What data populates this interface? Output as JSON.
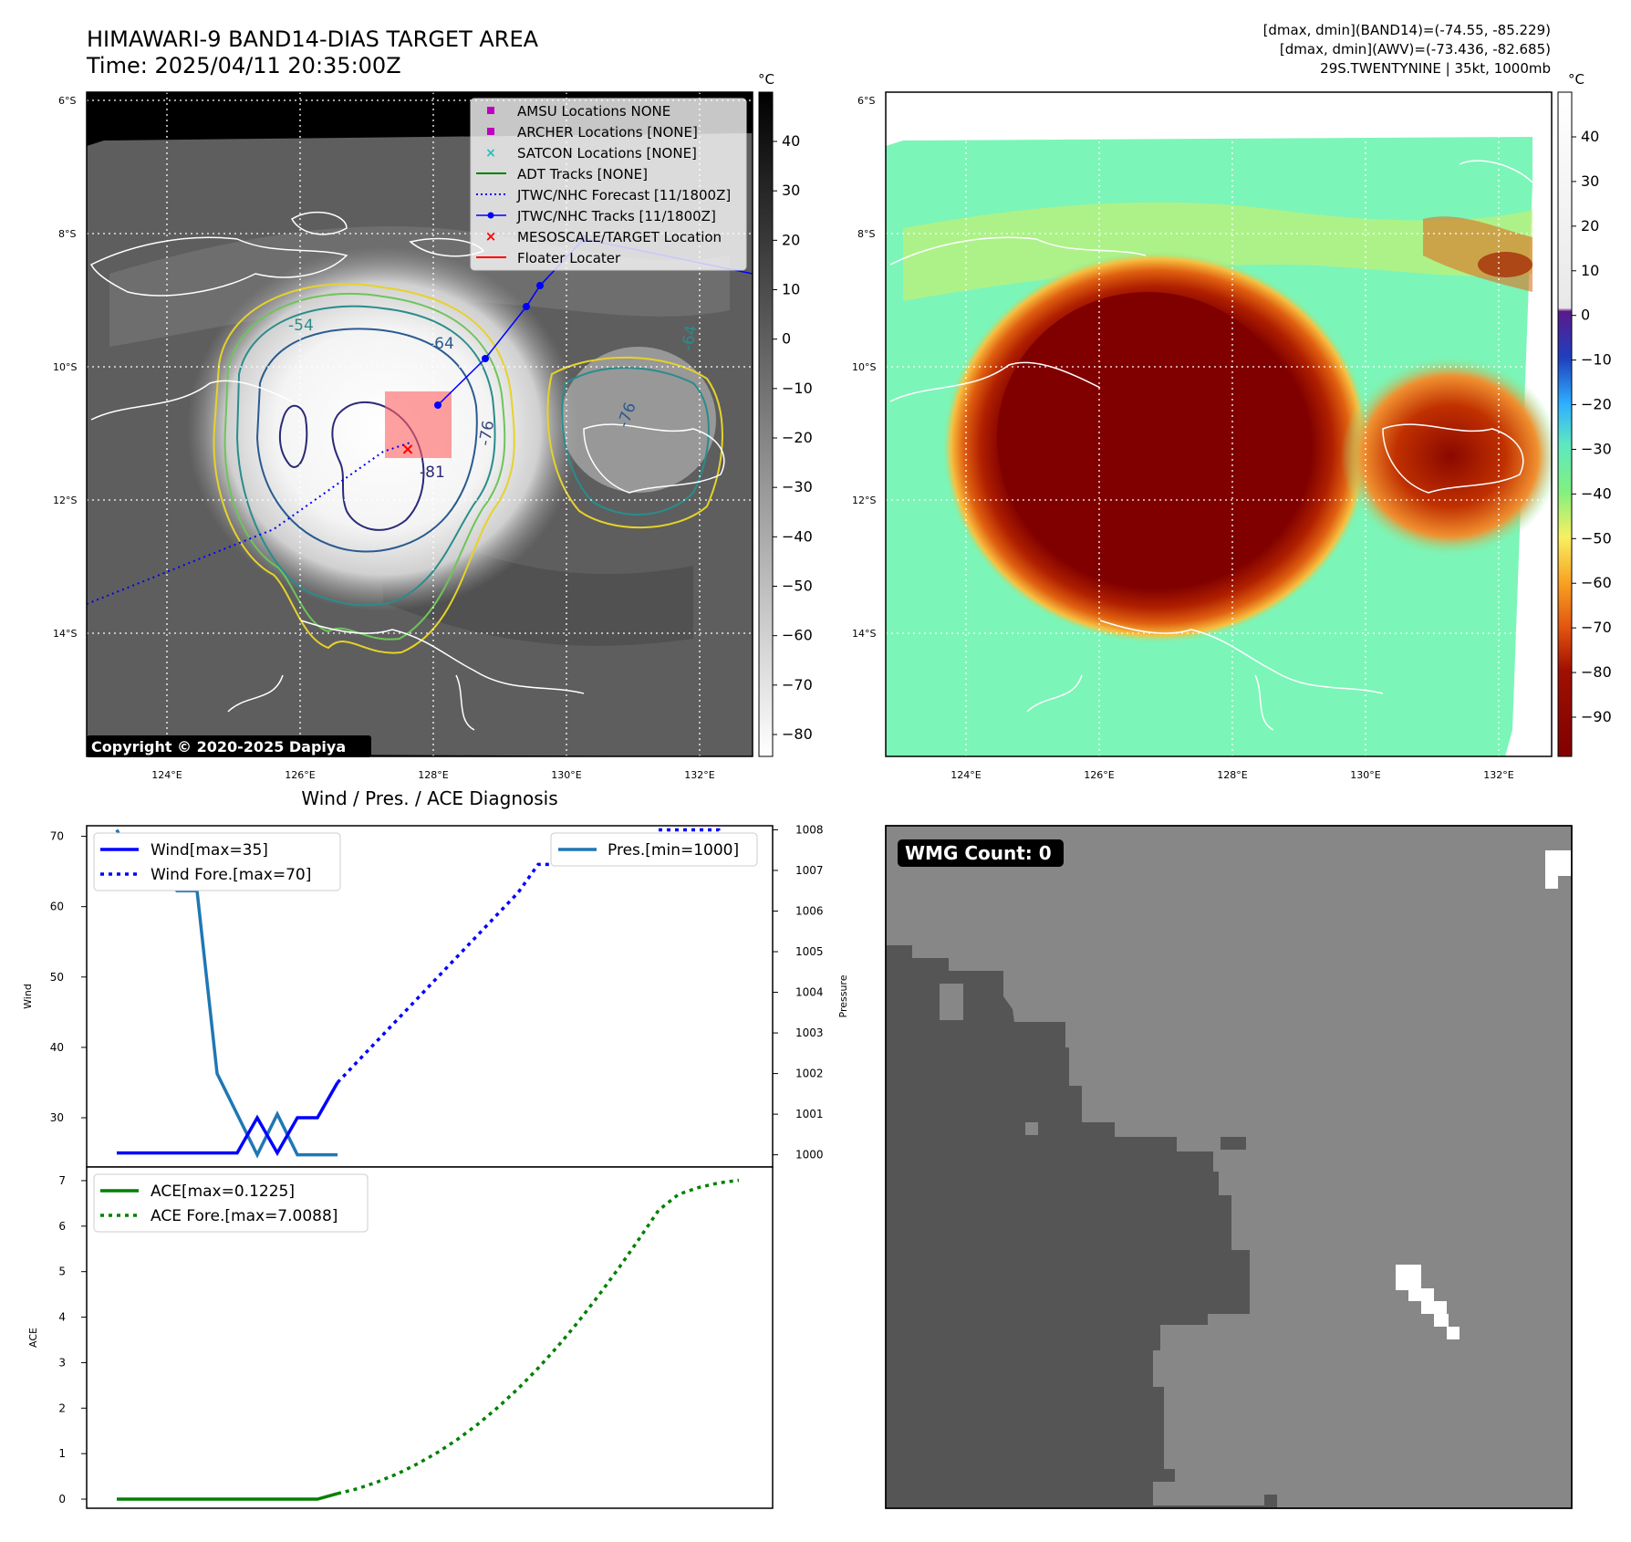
{
  "header": {
    "title": "HIMAWARI-9 BAND14-DIAS TARGET AREA",
    "time": "Time: 2025/04/11 20:35:00Z",
    "stats_band14": "[dmax, dmin](BAND14)=(-74.55, -85.229)",
    "stats_awv": "[dmax, dmin](AWV)=(-73.436, -82.685)",
    "storm_info": "29S.TWENTYNINE | 35kt, 1000mb"
  },
  "map": {
    "lat_labels": [
      "6°S",
      "8°S",
      "10°S",
      "12°S",
      "14°S"
    ],
    "lon_labels": [
      "124°E",
      "126°E",
      "128°E",
      "130°E",
      "132°E"
    ],
    "copyright": "Copyright © 2020-2025 Dapiya",
    "contour_labels": [
      "-54",
      "-64",
      "-76",
      "-81",
      "-76",
      "-64"
    ],
    "legend": [
      {
        "label": "AMSU Locations NONE",
        "marker": "square",
        "color": "#c000c0"
      },
      {
        "label": "ARCHER Locations [NONE]",
        "marker": "square",
        "color": "#c000c0"
      },
      {
        "label": "SATCON Locations [NONE]",
        "marker": "x",
        "color": "#1fbfbf"
      },
      {
        "label": "ADT Tracks [NONE]",
        "marker": "line",
        "color": "#008000"
      },
      {
        "label": "JTWC/NHC Forecast [11/1800Z]",
        "marker": "dotted",
        "color": "#0000ff"
      },
      {
        "label": "JTWC/NHC Tracks [11/1800Z]",
        "marker": "line-dot",
        "color": "#0000ff"
      },
      {
        "label": "MESOSCALE/TARGET Location",
        "marker": "x",
        "color": "#ff0000"
      },
      {
        "label": "Floater Locater",
        "marker": "line",
        "color": "#ff0000"
      }
    ]
  },
  "colorbar_gray": {
    "unit": "°C",
    "ticks": [
      "40",
      "30",
      "20",
      "10",
      "0",
      "−10",
      "−20",
      "−30",
      "−40",
      "−50",
      "−60",
      "−70",
      "−80"
    ]
  },
  "colorbar_color": {
    "unit": "°C",
    "ticks": [
      "40",
      "30",
      "20",
      "10",
      "0",
      "−10",
      "−20",
      "−30",
      "−40",
      "−50",
      "−60",
      "−70",
      "−80",
      "−90"
    ]
  },
  "diagnosis": {
    "title": "Wind / Pres. / ACE Diagnosis",
    "wind_ylabel": "Wind",
    "pres_ylabel": "Pressure",
    "ace_ylabel": "ACE",
    "wind_ticks": [
      "70",
      "60",
      "50",
      "40",
      "30"
    ],
    "pres_ticks": [
      "1008",
      "1007",
      "1006",
      "1005",
      "1004",
      "1003",
      "1002",
      "1001",
      "1000"
    ],
    "ace_ticks": [
      "7",
      "6",
      "5",
      "4",
      "3",
      "2",
      "1",
      "0"
    ],
    "legend_wind": "Wind[max=35]",
    "legend_wind_fore": "Wind Fore.[max=70]",
    "legend_pres": "Pres.[min=1000]",
    "legend_ace": "ACE[max=0.1225]",
    "legend_ace_fore": "ACE Fore.[max=7.0088]"
  },
  "wmg": {
    "label": "WMG Count: 0"
  },
  "chart_data": [
    {
      "type": "line",
      "title": "Wind / Pres. / ACE Diagnosis",
      "ylabel": "Wind",
      "ylim": [
        23,
        71.5
      ],
      "series": [
        {
          "name": "Wind[max=35]",
          "style": "solid",
          "color": "#0000ff",
          "x": [
            0,
            1,
            2,
            3,
            4,
            5,
            6,
            7,
            8,
            9,
            10,
            11
          ],
          "values": [
            25,
            25,
            25,
            25,
            25,
            25,
            25,
            30,
            25,
            30,
            30,
            35
          ]
        },
        {
          "name": "Wind Fore.[max=70]",
          "style": "dotted",
          "color": "#0000ff",
          "x": [
            11,
            12,
            13,
            14,
            15,
            16,
            17,
            18,
            19,
            20,
            21,
            22,
            23,
            24,
            25,
            26,
            27,
            28,
            29,
            30,
            31
          ],
          "values": [
            35,
            38,
            41,
            44,
            47,
            50,
            53,
            56,
            59,
            62,
            66,
            66,
            69,
            70,
            70,
            70,
            70,
            70,
            70,
            70,
            70
          ]
        }
      ]
    },
    {
      "type": "line",
      "ylabel": "Pressure",
      "ylim": [
        999.7,
        1008.1
      ],
      "series": [
        {
          "name": "Pres.[min=1000]",
          "style": "solid",
          "color": "#1f77b4",
          "x": [
            0,
            1,
            2,
            3,
            4,
            5,
            6,
            7,
            8,
            9,
            10,
            11
          ],
          "values": [
            1008,
            1007,
            1007,
            1006.5,
            1006.5,
            1002,
            1001,
            1000,
            1001,
            1000,
            1000,
            1000
          ]
        },
        {
          "name": "",
          "style": "dotted",
          "color": "#0000ff",
          "x": [
            27,
            28,
            29,
            30,
            31
          ],
          "values": [
            1008,
            1008,
            1008,
            1008,
            1007.2
          ]
        }
      ]
    },
    {
      "type": "line",
      "ylabel": "ACE",
      "ylim": [
        -0.2,
        7.3
      ],
      "series": [
        {
          "name": "ACE[max=0.1225]",
          "style": "solid",
          "color": "#008000",
          "x": [
            0,
            1,
            2,
            3,
            4,
            5,
            6,
            7,
            8,
            9,
            10,
            11
          ],
          "values": [
            0,
            0,
            0,
            0,
            0,
            0,
            0,
            0,
            0,
            0,
            0,
            0.1225
          ]
        },
        {
          "name": "ACE Fore.[max=7.0088]",
          "style": "dotted",
          "color": "#008000",
          "x": [
            11,
            12,
            13,
            14,
            15,
            16,
            17,
            18,
            19,
            20,
            21,
            22,
            23,
            24,
            25,
            26,
            27,
            28,
            29,
            30,
            31
          ],
          "values": [
            0.1225,
            0.23,
            0.38,
            0.56,
            0.78,
            1.03,
            1.32,
            1.65,
            2.02,
            2.43,
            2.88,
            3.37,
            3.9,
            4.47,
            5.07,
            5.7,
            6.35,
            6.7,
            6.85,
            6.95,
            7.0088
          ]
        }
      ]
    }
  ]
}
